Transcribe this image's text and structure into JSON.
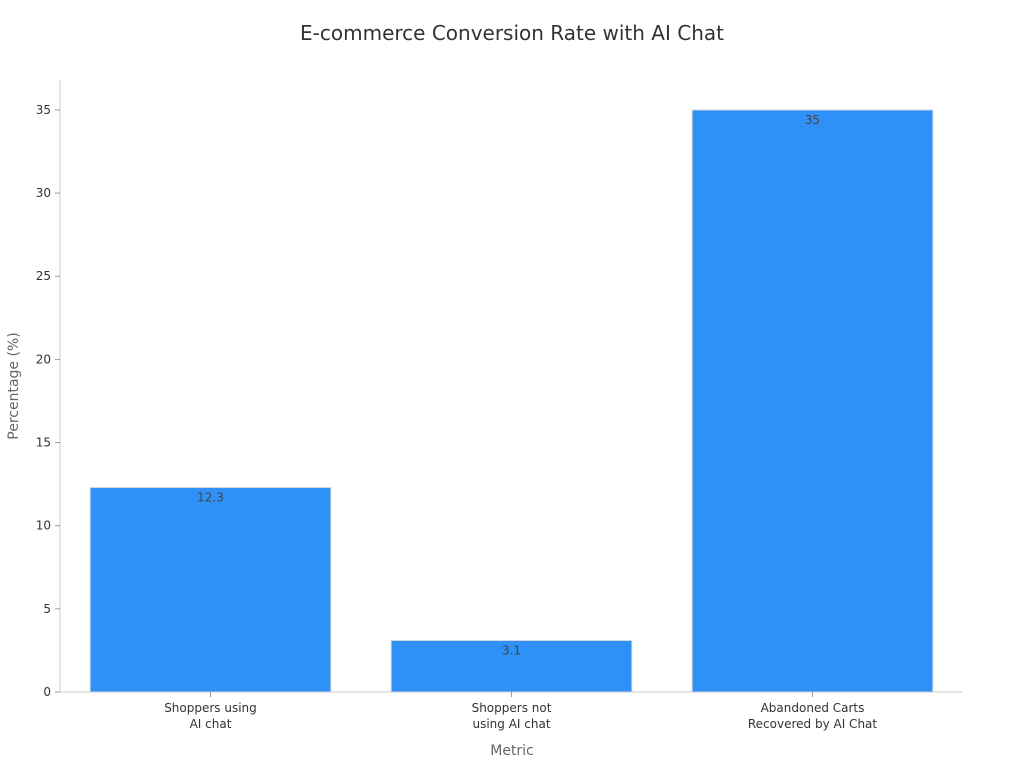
{
  "chart_data": {
    "type": "bar",
    "title": "E-commerce Conversion Rate with AI Chat",
    "xlabel": "Metric",
    "ylabel": "Percentage (%)",
    "categories": [
      [
        "Shoppers using",
        "AI chat"
      ],
      [
        "Shoppers not",
        "using AI chat"
      ],
      [
        "Abandoned Carts",
        "Recovered by AI Chat"
      ]
    ],
    "values": [
      12.3,
      3.1,
      35
    ],
    "data_labels": [
      "12.3",
      "3.1",
      "35"
    ],
    "yticks": [
      0,
      5,
      10,
      15,
      20,
      25,
      30,
      35
    ],
    "ylim": [
      0,
      36.8
    ],
    "bar_color": "#2f91f7",
    "grid": false,
    "legend": "none"
  }
}
